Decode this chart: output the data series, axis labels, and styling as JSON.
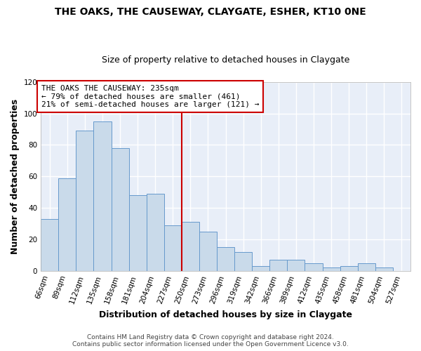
{
  "title1": "THE OAKS, THE CAUSEWAY, CLAYGATE, ESHER, KT10 0NE",
  "title2": "Size of property relative to detached houses in Claygate",
  "xlabel": "Distribution of detached houses by size in Claygate",
  "ylabel": "Number of detached properties",
  "categories": [
    "66sqm",
    "89sqm",
    "112sqm",
    "135sqm",
    "158sqm",
    "181sqm",
    "204sqm",
    "227sqm",
    "250sqm",
    "273sqm",
    "296sqm",
    "319sqm",
    "342sqm",
    "366sqm",
    "389sqm",
    "412sqm",
    "435sqm",
    "458sqm",
    "481sqm",
    "504sqm",
    "527sqm"
  ],
  "values": [
    33,
    59,
    89,
    95,
    78,
    48,
    49,
    29,
    31,
    25,
    15,
    12,
    3,
    7,
    7,
    5,
    2,
    3,
    5,
    2,
    0
  ],
  "bar_color": "#c9daea",
  "bar_edge_color": "#6699cc",
  "highlight_index": 7,
  "highlight_color": "#cc0000",
  "annotation_title": "THE OAKS THE CAUSEWAY: 235sqm",
  "annotation_line1": "← 79% of detached houses are smaller (461)",
  "annotation_line2": "21% of semi-detached houses are larger (121) →",
  "annotation_box_edge": "#cc0000",
  "ylim": [
    0,
    120
  ],
  "yticks": [
    0,
    20,
    40,
    60,
    80,
    100,
    120
  ],
  "footer1": "Contains HM Land Registry data © Crown copyright and database right 2024.",
  "footer2": "Contains public sector information licensed under the Open Government Licence v3.0.",
  "background_color": "#ffffff",
  "plot_bg_color": "#e8eef8",
  "grid_color": "#ffffff",
  "title1_fontsize": 10,
  "title2_fontsize": 9,
  "axis_label_fontsize": 9,
  "tick_fontsize": 7.5,
  "annotation_fontsize": 8,
  "footer_fontsize": 6.5
}
